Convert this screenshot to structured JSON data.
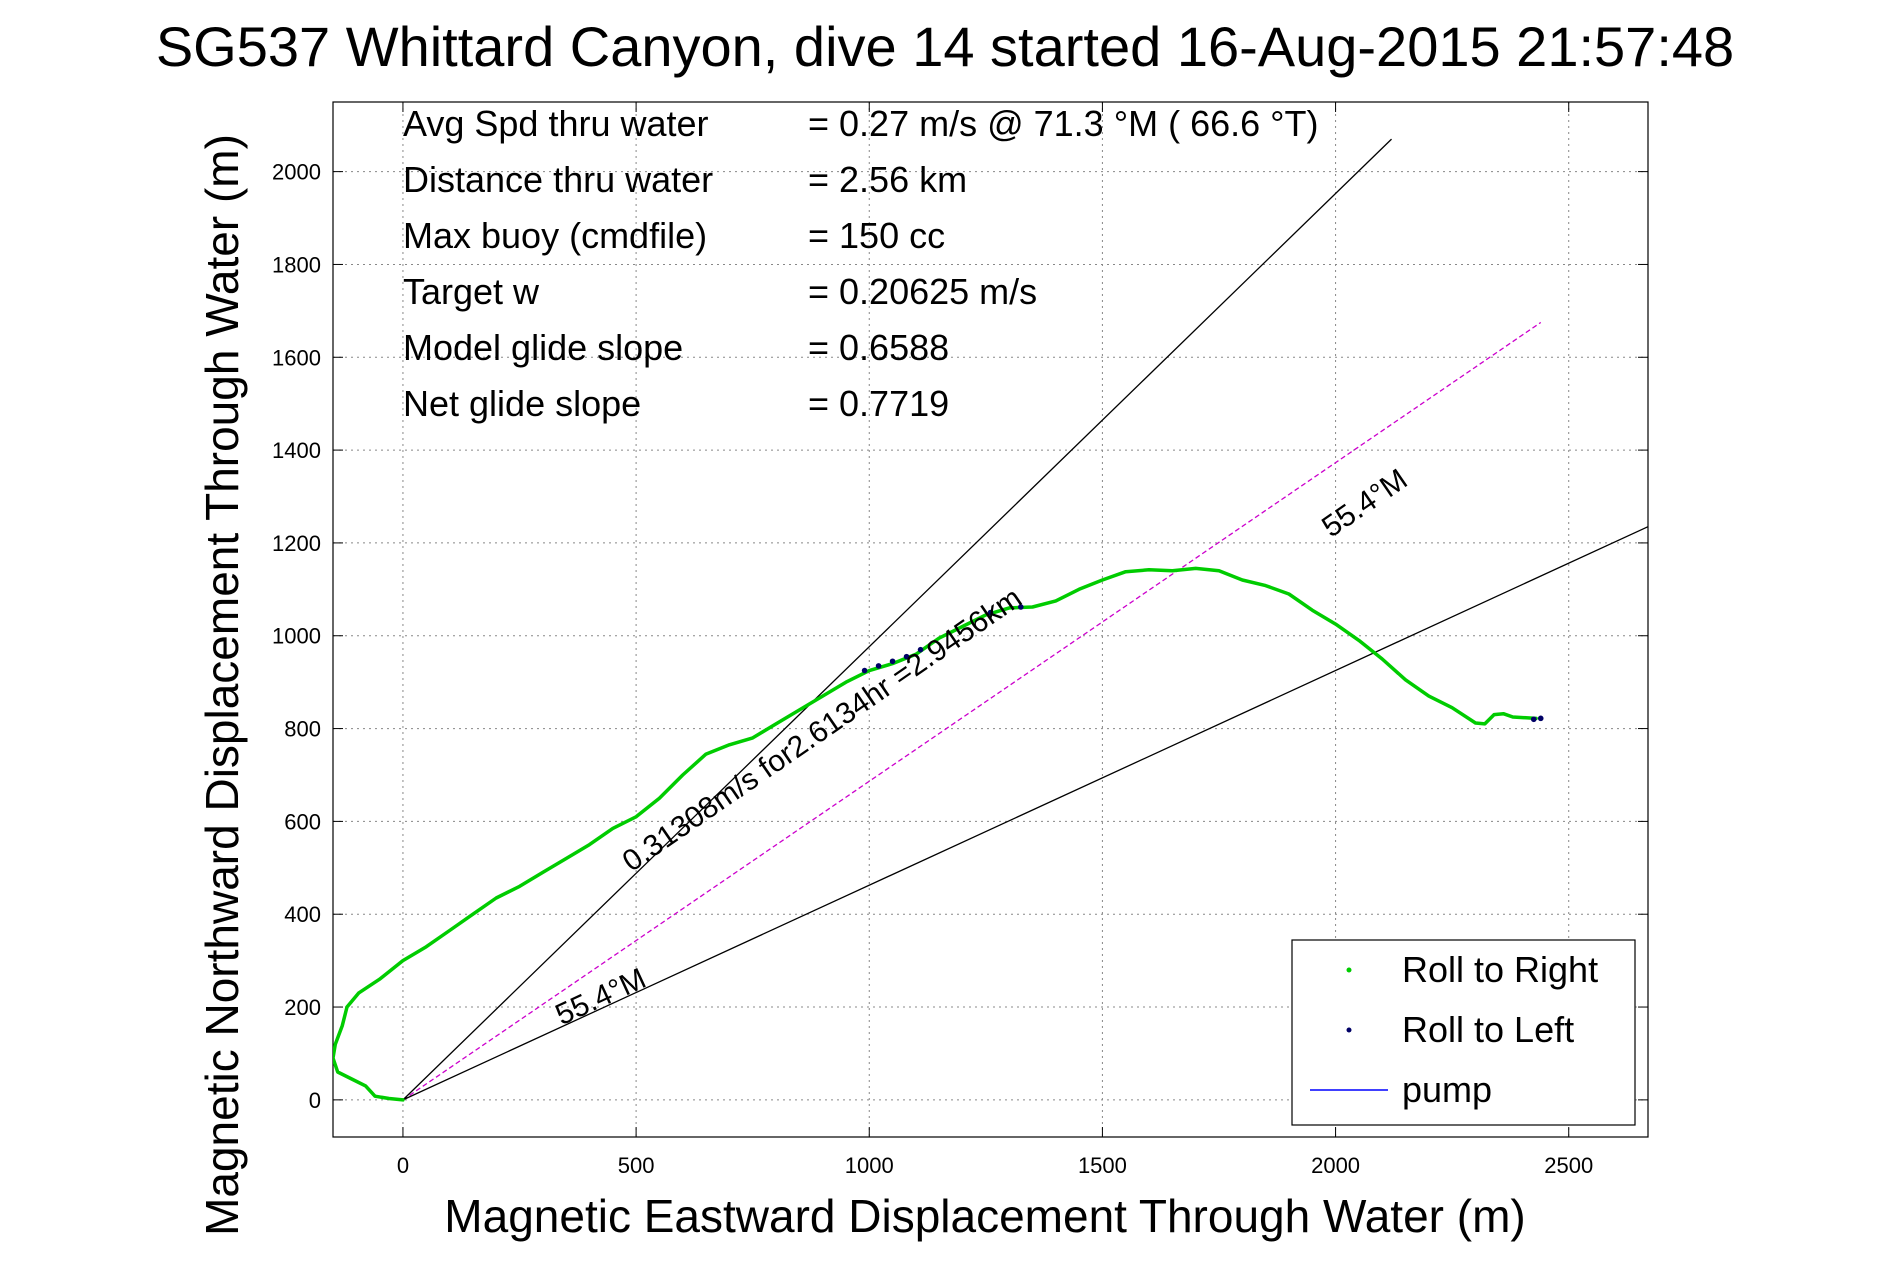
{
  "chart_data": {
    "type": "scatter",
    "title": "SG537 Whittard Canyon, dive 14 started 16-Aug-2015 21:57:48",
    "xlabel": "Magnetic Eastward Displacement Through Water (m)",
    "ylabel": "Magnetic Northward Displacement Through Water (m)",
    "xlim": [
      -150,
      2670
    ],
    "ylim": [
      -80,
      2150
    ],
    "xticks": [
      0,
      500,
      1000,
      1500,
      2000,
      2500
    ],
    "yticks": [
      0,
      200,
      400,
      600,
      800,
      1000,
      1200,
      1400,
      1600,
      1800,
      2000
    ],
    "grid": true,
    "legend_position": "bottom-right",
    "legend": [
      {
        "label": "Roll to Right",
        "marker": "dot",
        "color": "#00cc00"
      },
      {
        "label": "Roll to Left",
        "marker": "dot",
        "color": "#000066"
      },
      {
        "label": "pump",
        "marker": "line",
        "color": "#0000ff"
      }
    ],
    "stats": [
      {
        "label": "Avg Spd thru water",
        "value": "=  0.27 m/s @  71.3 °M ( 66.6 °T)"
      },
      {
        "label": "Distance thru water",
        "value": "=  2.56 km"
      },
      {
        "label": "Max buoy (cmdfile)",
        "value": "= 150 cc"
      },
      {
        "label": "Target w",
        "value": "= 0.20625 m/s"
      },
      {
        "label": "Model glide slope",
        "value": "= 0.6588"
      },
      {
        "label": "Net glide slope",
        "value": "= 0.7719"
      }
    ],
    "series": [
      {
        "name": "Roll to Right",
        "color": "#00cc00",
        "points": [
          [
            0,
            0
          ],
          [
            -30,
            3
          ],
          [
            -60,
            8
          ],
          [
            -80,
            30
          ],
          [
            -110,
            45
          ],
          [
            -140,
            60
          ],
          [
            -150,
            90
          ],
          [
            -145,
            120
          ],
          [
            -130,
            160
          ],
          [
            -120,
            200
          ],
          [
            -95,
            230
          ],
          [
            -50,
            260
          ],
          [
            0,
            300
          ],
          [
            50,
            330
          ],
          [
            100,
            365
          ],
          [
            150,
            400
          ],
          [
            200,
            435
          ],
          [
            250,
            460
          ],
          [
            300,
            490
          ],
          [
            350,
            520
          ],
          [
            400,
            550
          ],
          [
            450,
            585
          ],
          [
            500,
            610
          ],
          [
            550,
            650
          ],
          [
            600,
            700
          ],
          [
            650,
            745
          ],
          [
            700,
            765
          ],
          [
            750,
            780
          ],
          [
            800,
            810
          ],
          [
            850,
            840
          ],
          [
            900,
            870
          ],
          [
            950,
            900
          ],
          [
            1000,
            925
          ],
          [
            1050,
            940
          ],
          [
            1100,
            960
          ],
          [
            1150,
            995
          ],
          [
            1200,
            1020
          ],
          [
            1250,
            1045
          ],
          [
            1300,
            1060
          ],
          [
            1350,
            1062
          ],
          [
            1400,
            1075
          ],
          [
            1450,
            1100
          ],
          [
            1500,
            1120
          ],
          [
            1550,
            1138
          ],
          [
            1600,
            1142
          ],
          [
            1650,
            1140
          ],
          [
            1700,
            1145
          ],
          [
            1750,
            1140
          ],
          [
            1800,
            1120
          ],
          [
            1850,
            1108
          ],
          [
            1900,
            1090
          ],
          [
            1950,
            1055
          ],
          [
            2000,
            1025
          ],
          [
            2050,
            990
          ],
          [
            2100,
            950
          ],
          [
            2150,
            905
          ],
          [
            2200,
            870
          ],
          [
            2250,
            845
          ],
          [
            2300,
            812
          ],
          [
            2320,
            810
          ],
          [
            2340,
            830
          ],
          [
            2360,
            832
          ],
          [
            2380,
            825
          ],
          [
            2430,
            822
          ]
        ]
      },
      {
        "name": "Roll to Left",
        "color": "#000066",
        "points": [
          [
            990,
            925
          ],
          [
            1020,
            935
          ],
          [
            1050,
            945
          ],
          [
            1080,
            955
          ],
          [
            1110,
            970
          ],
          [
            1260,
            1050
          ],
          [
            1325,
            1062
          ],
          [
            2425,
            820
          ],
          [
            2440,
            822
          ]
        ]
      },
      {
        "name": "pump",
        "color": "#0000ff",
        "points": []
      }
    ],
    "reference_lines": [
      {
        "from": [
          0,
          0
        ],
        "to": [
          2440,
          1675
        ],
        "color": "#cc00cc",
        "style": "dashed"
      },
      {
        "from": [
          0,
          0
        ],
        "to": [
          2120,
          2070
        ],
        "color": "#000000",
        "style": "solid"
      },
      {
        "from": [
          0,
          0
        ],
        "to": [
          2670,
          1235
        ],
        "color": "#000000",
        "style": "solid"
      }
    ],
    "annotations": [
      {
        "text": "55.4°M",
        "at": [
          1990,
          1210
        ],
        "angle": -34.5
      },
      {
        "text": "0.31308m/s for2.6134hr =2.9456km",
        "at": [
          490,
          490
        ],
        "angle": -34.5
      },
      {
        "text": "55.4°M",
        "at": [
          340,
          160
        ],
        "angle": -24.8
      }
    ]
  }
}
